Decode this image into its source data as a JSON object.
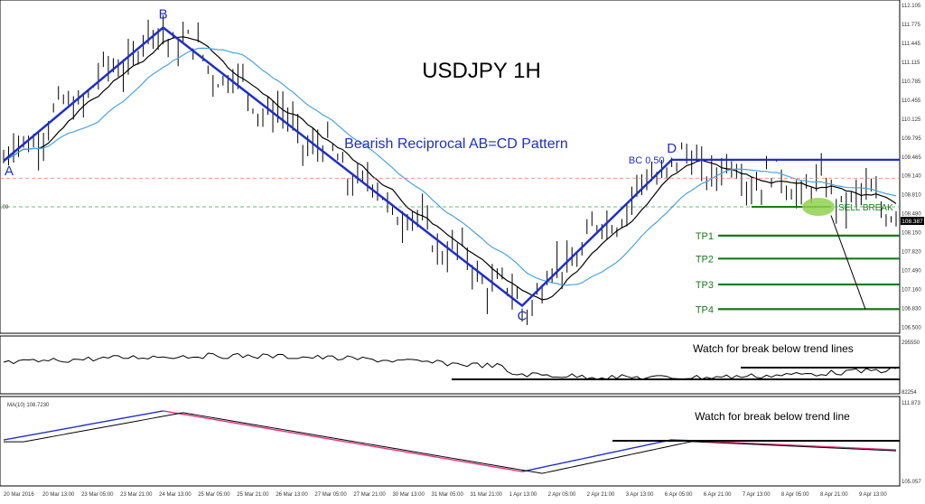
{
  "chart_data": [
    {
      "type": "line",
      "title": "USDJPY 1H",
      "subtitle": "Bearish Reciprocal AB=CD Pattern",
      "ylim": [
        106.4,
        112.2
      ],
      "y_ticks": [
        "112.105",
        "111.775",
        "111.445",
        "111.115",
        "110.785",
        "110.455",
        "110.125",
        "109.795",
        "109.465",
        "109.140",
        "108.810",
        "108.480",
        "108.150",
        "107.820",
        "107.490",
        "107.160",
        "106.830",
        "106.500"
      ],
      "x_ticks": [
        "20 Mar 2016",
        "20 Mar 13:00",
        "23 Mar 05:00",
        "23 Mar 21:00",
        "24 Mar 13:00",
        "25 Mar 05:00",
        "25 Mar 21:00",
        "26 Mar 13:00",
        "27 Mar 05:00",
        "27 Mar 21:00",
        "30 Mar 13:00",
        "31 Mar 05:00",
        "31 Mar 21:00",
        "1 Apr 13:00",
        "2 Apr 05:00",
        "2 Apr 21:00",
        "3 Apr 13:00",
        "6 Apr 05:00",
        "6 Apr 21:00",
        "7 Apr 13:00",
        "8 Apr 05:00",
        "8 Apr 21:00",
        "9 Apr 13:00"
      ],
      "price_tag": "108.387",
      "pattern_points": [
        {
          "label": "A",
          "x": 0,
          "y": 109.4
        },
        {
          "label": "B",
          "x": 32,
          "y": 111.72
        },
        {
          "label": "C",
          "x": 104,
          "y": 106.88
        },
        {
          "label": "D",
          "x": 134,
          "y": 109.42
        }
      ],
      "levels": [
        {
          "label": "BC 0.50",
          "y": 109.42,
          "color": "#1e2fc8"
        },
        {
          "label": "SELL BREAK",
          "y": 108.6,
          "color": "#1a7a1a"
        },
        {
          "label": "TP1",
          "y": 108.1,
          "color": "#1a7a1a"
        },
        {
          "label": "TP2",
          "y": 107.7,
          "color": "#1a7a1a"
        },
        {
          "label": "TP3",
          "y": 107.25,
          "color": "#1a7a1a"
        },
        {
          "label": "TP4",
          "y": 106.82,
          "color": "#1a7a1a"
        }
      ],
      "level_left_label": ".00"
    },
    {
      "type": "line",
      "annotation": "Watch for break below trend lines",
      "y_ticks": [
        "295550",
        "82254"
      ]
    },
    {
      "type": "line",
      "legend": "MA(10) 108.7230",
      "annotation": "Watch for break below trend line",
      "y_ticks": [
        "111.873",
        "105.057"
      ]
    }
  ],
  "colors": {
    "pattern": "#1e2fc8",
    "ma_fast": "#000000",
    "ma_slow": "#4aa3e0",
    "target": "#1a7a1a",
    "sell_zone": "#8fd14f",
    "up_candle": "#1e2fc8",
    "down_candle": "#e0307a"
  }
}
